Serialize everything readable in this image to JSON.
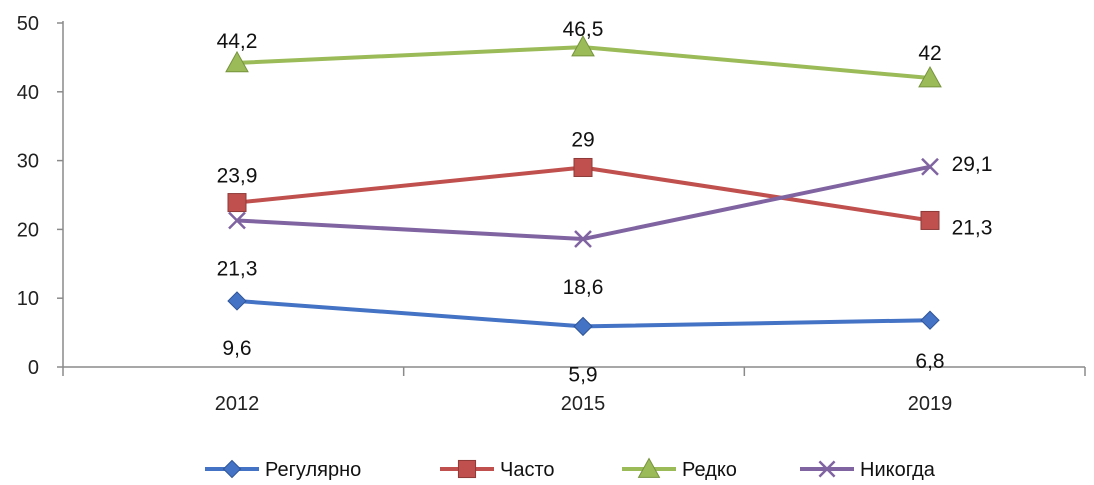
{
  "chart_data": {
    "type": "line",
    "categories": [
      "2012",
      "2015",
      "2019"
    ],
    "ylim": [
      0,
      50
    ],
    "yticks": [
      "0",
      "10",
      "20",
      "30",
      "40",
      "50"
    ],
    "grid": false,
    "legend_position": "bottom",
    "title": "",
    "xlabel": "",
    "ylabel": "",
    "series": [
      {
        "name": "Регулярно",
        "color": "#4472C4",
        "marker": "diamond",
        "values": [
          9.6,
          5.9,
          6.8
        ],
        "labels": [
          "9,6",
          "5,9",
          "6,8"
        ]
      },
      {
        "name": "Часто",
        "color": "#C0504D",
        "marker": "square",
        "values": [
          23.9,
          29,
          21.3
        ],
        "labels": [
          "23,9",
          "29",
          "21,3"
        ]
      },
      {
        "name": "Редко",
        "color": "#9BBB59",
        "marker": "triangle",
        "values": [
          44.2,
          46.5,
          42
        ],
        "labels": [
          "44,2",
          "46,5",
          "42"
        ]
      },
      {
        "name": "Никогда",
        "color": "#8064A2",
        "marker": "x",
        "values": [
          21.3,
          18.6,
          29.1
        ],
        "labels": [
          "21,3",
          "18,6",
          "29,1"
        ]
      }
    ]
  }
}
